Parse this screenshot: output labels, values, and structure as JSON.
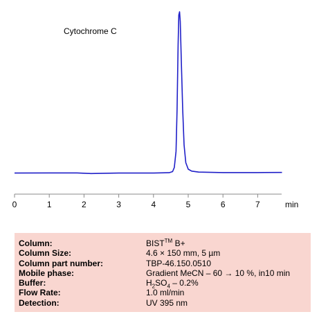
{
  "chart_data": {
    "type": "line",
    "title": "",
    "annotation": "Cytochrome C",
    "xlabel": "min",
    "ylabel": "",
    "xlim": [
      0,
      7.7
    ],
    "ylim": [
      0,
      100
    ],
    "x_ticks": [
      "0",
      "1",
      "2",
      "3",
      "4",
      "5",
      "6",
      "7"
    ],
    "grid": false,
    "line_color": "#1f1fc8",
    "series": [
      {
        "x": [
          0,
          1,
          1.8,
          2.2,
          3,
          4,
          4.45,
          4.55,
          4.6,
          4.65,
          4.68,
          4.71,
          4.73,
          4.75,
          4.77,
          4.8,
          4.84,
          4.88,
          4.93,
          5.0,
          5.1,
          5.3,
          6,
          7,
          7.7
        ],
        "y": [
          0.6,
          0.7,
          0.7,
          0.3,
          0.6,
          0.6,
          0.8,
          1.5,
          4,
          14,
          40,
          80,
          98,
          100,
          94,
          70,
          40,
          18,
          7,
          3,
          1.8,
          1.2,
          0.9,
          0.9,
          1.0
        ]
      }
    ]
  },
  "info": {
    "rows": [
      {
        "label": "Column:",
        "value": "BIST",
        "sup": "TM",
        "value_after": " B+"
      },
      {
        "label": "Column Size:",
        "value": "4.6 × 150 mm, 5 µm"
      },
      {
        "label": "Column part number:",
        "value": "TBP-46.150.0510"
      },
      {
        "label": "Mobile phase:",
        "value": "Gradient  MeCN – 60 → 10 %, in10 min"
      },
      {
        "label": "Buffer:",
        "value": "H",
        "sub1": "2",
        "mid": "SO",
        "sub2": "4",
        "value_after": " – 0.2%"
      },
      {
        "label": "Flow Rate:",
        "value": "1.0 ml/min"
      },
      {
        "label": "Detection:",
        "value": "UV  395 nm"
      }
    ]
  }
}
